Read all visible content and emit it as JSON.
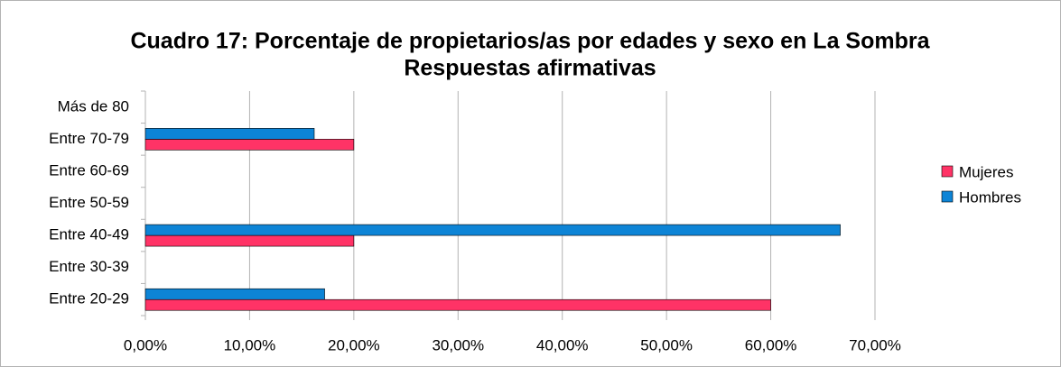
{
  "chart_data": {
    "type": "hbar",
    "title": "Cuadro 17: Porcentaje de propietarios/as por edades y sexo en La Sombra",
    "subtitle": "Respuestas afirmativas",
    "categories": [
      "Más de 80",
      "Entre 70-79",
      "Entre 60-69",
      "Entre 50-59",
      "Entre 40-49",
      "Entre 30-39",
      "Entre 20-29"
    ],
    "series": [
      {
        "name": "Mujeres",
        "color": "#ff3366",
        "values": [
          0,
          20,
          0,
          0,
          20,
          0,
          60
        ]
      },
      {
        "name": "Hombres",
        "color": "#0d84d6",
        "values": [
          0,
          16.2,
          0,
          0,
          66.67,
          0,
          17.2
        ]
      }
    ],
    "xlim": [
      0,
      70
    ],
    "xticks": [
      {
        "value": 0,
        "label": "0,00%"
      },
      {
        "value": 10,
        "label": "10,00%"
      },
      {
        "value": 20,
        "label": "20,00%"
      },
      {
        "value": 30,
        "label": "30,00%"
      },
      {
        "value": 40,
        "label": "40,00%"
      },
      {
        "value": 50,
        "label": "50,00%"
      },
      {
        "value": 60,
        "label": "60,00%"
      },
      {
        "value": 70,
        "label": "70,00%"
      }
    ],
    "grid": true,
    "legend": "right"
  }
}
